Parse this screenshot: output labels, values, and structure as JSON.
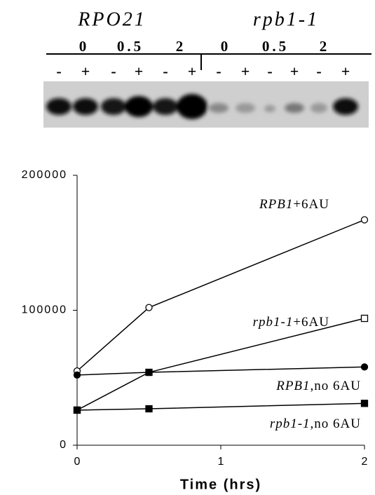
{
  "gel": {
    "strains": [
      {
        "name": "RPO21",
        "times": [
          "0",
          "0.5",
          "2"
        ]
      },
      {
        "name": "rpb1-1",
        "times": [
          "0",
          "0.5",
          "2"
        ]
      }
    ],
    "lanes": [
      "-",
      "+",
      "-",
      "+",
      "-",
      "+",
      "-",
      "+",
      "-",
      "+",
      "-",
      "+"
    ]
  },
  "chart_data": {
    "type": "line",
    "x_label": "Time (hrs)",
    "xlim": [
      0,
      2
    ],
    "xticks": [
      0,
      1,
      2
    ],
    "ylim": [
      0,
      200000
    ],
    "yticks": [
      0,
      100000,
      200000
    ],
    "series": [
      {
        "gene": "RPB1",
        "condition": "+6AU",
        "marker": "circle",
        "filled": false,
        "color": "#000000",
        "x": [
          0,
          0.5,
          2
        ],
        "values": [
          55000,
          102000,
          167000
        ]
      },
      {
        "gene": "rpb1-1",
        "condition": "+6AU",
        "marker": "square",
        "filled": false,
        "color": "#000000",
        "x": [
          0,
          0.5,
          2
        ],
        "values": [
          26000,
          54000,
          94000
        ]
      },
      {
        "gene": "RPB1",
        "condition": ",no 6AU",
        "marker": "circle",
        "filled": true,
        "color": "#000000",
        "x": [
          0,
          0.5,
          2
        ],
        "values": [
          52000,
          54000,
          58000
        ]
      },
      {
        "gene": "rpb1-1",
        "condition": ",no 6AU",
        "marker": "square",
        "filled": true,
        "color": "#000000",
        "x": [
          0,
          0.5,
          2
        ],
        "values": [
          26000,
          27000,
          31000
        ]
      }
    ]
  }
}
